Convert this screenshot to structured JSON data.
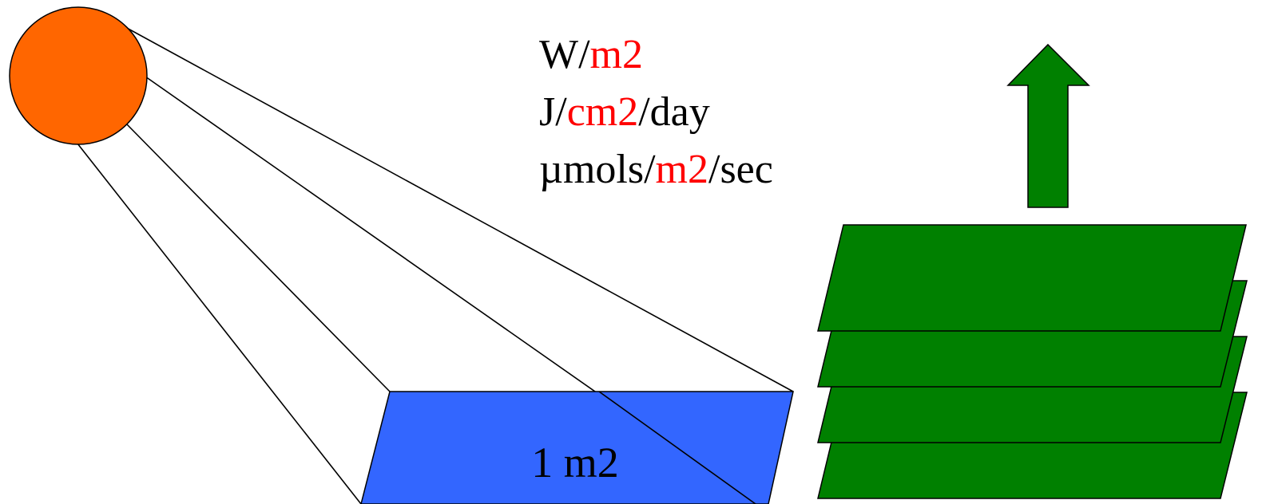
{
  "colors": {
    "sun": "#ff6600",
    "area": "#3366ff",
    "leaf": "#008000",
    "highlight": "#ff0000",
    "text": "#000000",
    "outline": "#000000"
  },
  "icons": {
    "sun": "sun-icon",
    "arrow": "up-arrow-icon"
  },
  "units": [
    {
      "parts": [
        {
          "text": "W/",
          "highlight": false
        },
        {
          "text": "m2",
          "highlight": true
        }
      ]
    },
    {
      "parts": [
        {
          "text": "J/",
          "highlight": false
        },
        {
          "text": "cm2",
          "highlight": true
        },
        {
          "text": "/day",
          "highlight": false
        }
      ]
    },
    {
      "parts": [
        {
          "text": "µmols/",
          "highlight": false
        },
        {
          "text": "m2",
          "highlight": true
        },
        {
          "text": "/sec",
          "highlight": false
        }
      ]
    }
  ],
  "area_label": "1 m2",
  "leaf_layers": 4
}
